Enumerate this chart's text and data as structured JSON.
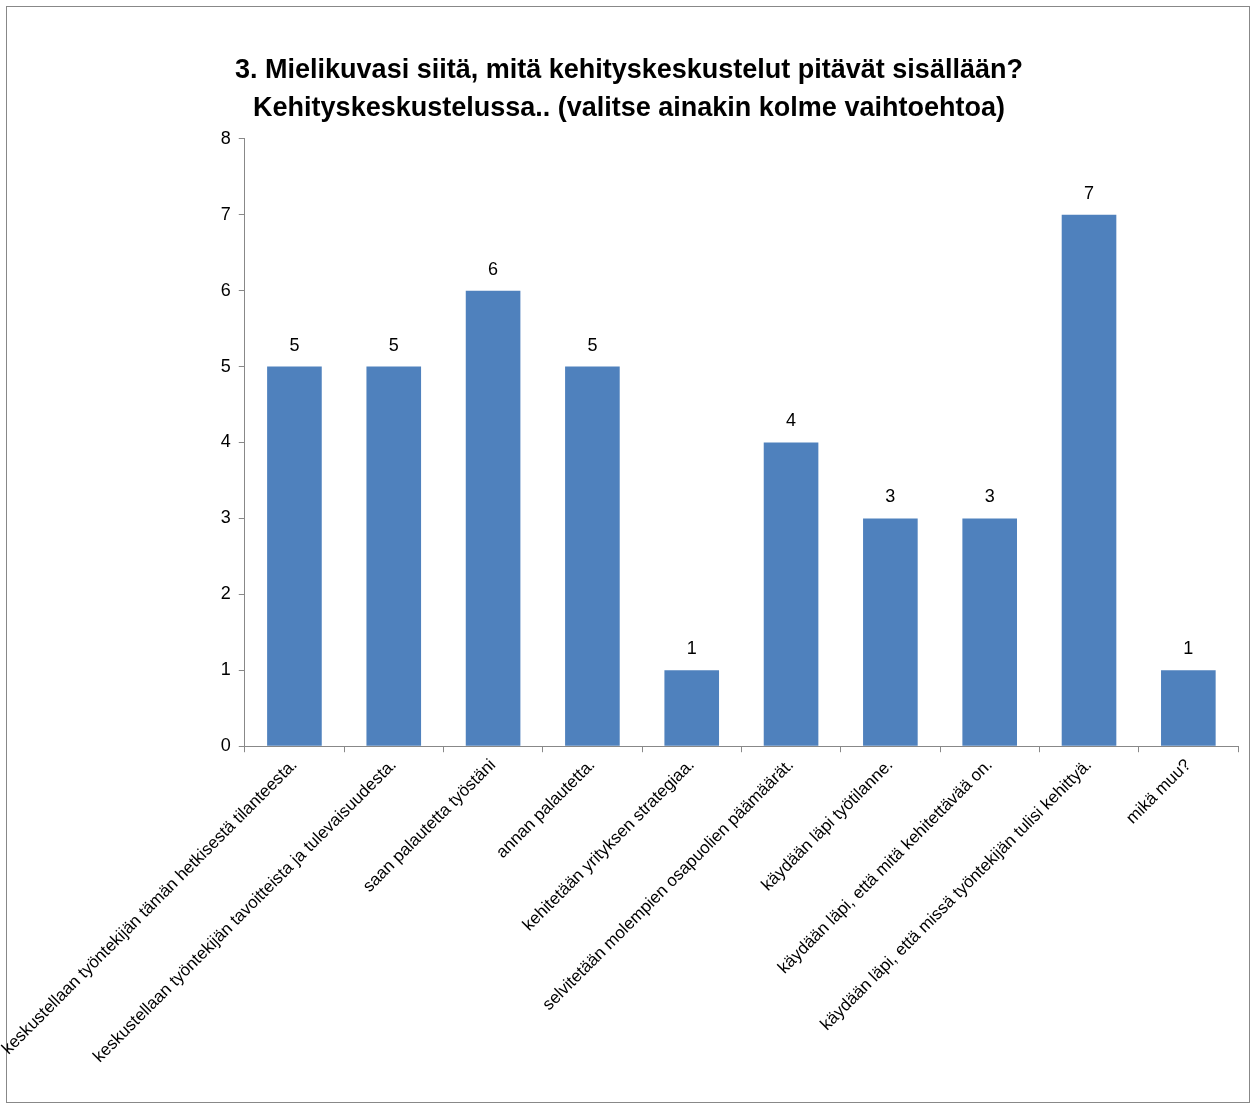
{
  "chart_data": {
    "type": "bar",
    "title": "3. Mielikuvasi siitä, mitä kehityskeskustelut pitävät sisällään?\nKehityskeskustelussa.. (valitse ainakin kolme vaihtoehtoa)",
    "categories": [
      "keskustellaan työntekijän tämän hetkisestä tilanteesta.",
      "keskustellaan työntekijän tavoitteista ja tulevaisuudesta.",
      "saan palautetta työstäni",
      "annan palautetta.",
      "kehitetään yrityksen strategiaa.",
      "selvitetään molempien osapuolien päämäärät.",
      "käydään läpi työtilanne.",
      "käydään läpi, että mitä kehitettävää on.",
      "käydään läpi, että missä työntekijän tulisi kehittyä.",
      "mikä muu?"
    ],
    "values": [
      5,
      5,
      6,
      5,
      1,
      4,
      3,
      3,
      7,
      1
    ],
    "color": "#4f81bd",
    "ylim": [
      0,
      8
    ],
    "yticks": [
      0,
      1,
      2,
      3,
      4,
      5,
      6,
      7,
      8
    ],
    "grid": false,
    "legend": false,
    "data_labels": true
  }
}
